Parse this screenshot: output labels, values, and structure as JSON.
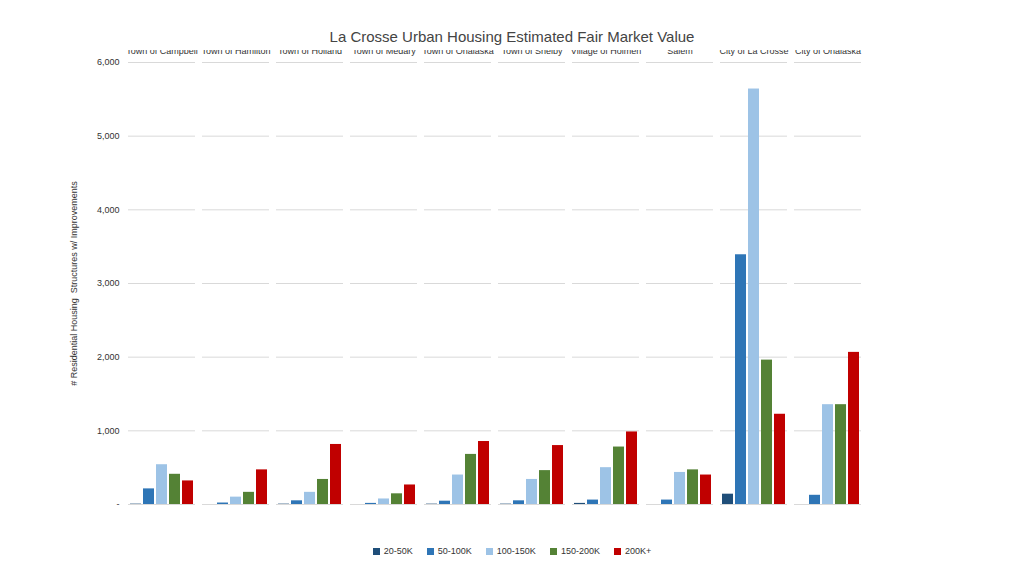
{
  "chart_data": {
    "type": "bar",
    "title": "La Crosse Urban Housing Estimated Fair Market Value",
    "y_label": "# Residential Housing  Structures w/ Improvements",
    "categories": [
      "Town of Campbell",
      "Town of Hamilton",
      "Town of Holland",
      "Town of Medary",
      "Town of Onalaska",
      "Town of Shelby",
      "Village of Holmen",
      "Village of West Salem",
      "City of La Crosse",
      "City of Onalaska"
    ],
    "series": [
      {
        "name": "20-50K",
        "color": "#1f4e79",
        "values": [
          5,
          0,
          5,
          0,
          5,
          5,
          15,
          0,
          140,
          0
        ]
      },
      {
        "name": "50-100K",
        "color": "#2e75b6",
        "values": [
          212,
          20,
          50,
          15,
          45,
          50,
          60,
          60,
          3390,
          125
        ]
      },
      {
        "name": "100-150K",
        "color": "#9dc3e6",
        "values": [
          540,
          100,
          165,
          75,
          400,
          340,
          500,
          435,
          5640,
          1355
        ]
      },
      {
        "name": "150-200K",
        "color": "#548235",
        "values": [
          410,
          165,
          340,
          145,
          680,
          460,
          780,
          470,
          1960,
          1355
        ]
      },
      {
        "name": "200K+",
        "color": "#c00000",
        "values": [
          320,
          470,
          815,
          265,
          855,
          800,
          985,
          400,
          1225,
          2065
        ]
      }
    ],
    "ylim": [
      0,
      6000
    ],
    "yticks": [
      {
        "value": 0,
        "label": "-"
      },
      {
        "value": 1000,
        "label": "1,000"
      },
      {
        "value": 2000,
        "label": "2,000"
      },
      {
        "value": 3000,
        "label": "3,000"
      },
      {
        "value": 4000,
        "label": "4,000"
      },
      {
        "value": 5000,
        "label": "5,000"
      },
      {
        "value": 6000,
        "label": "6,000"
      }
    ],
    "grid": true,
    "legend": "bottom"
  }
}
